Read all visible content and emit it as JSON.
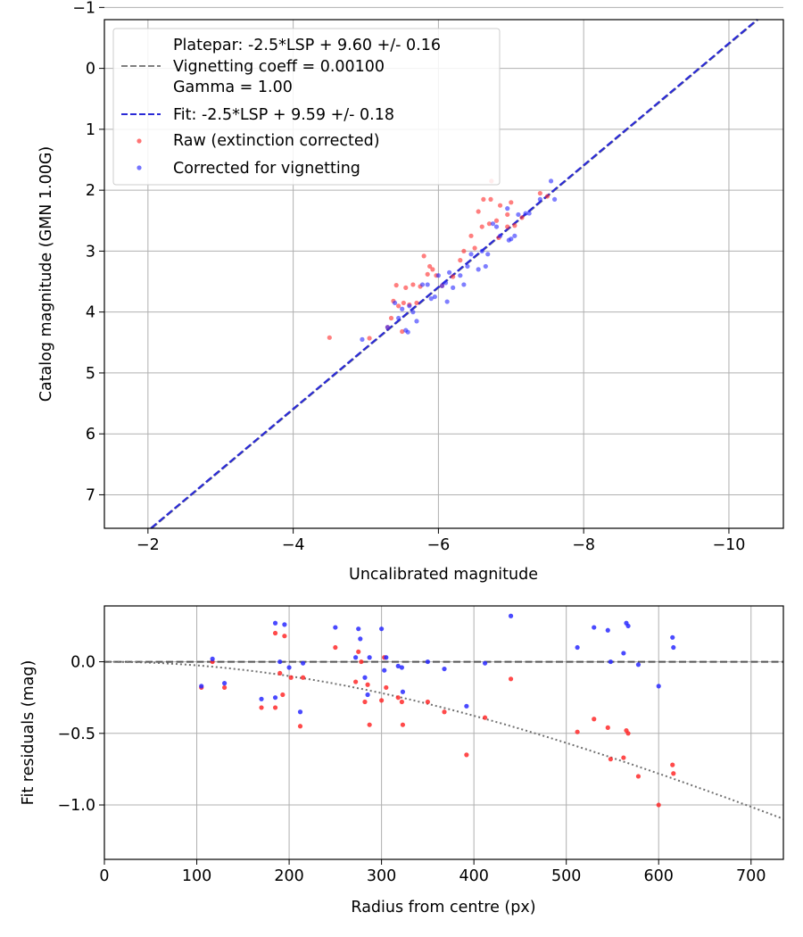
{
  "chart_data": [
    {
      "type": "scatter",
      "xlabel": "Uncalibrated magnitude",
      "ylabel": "Catalog magnitude (GMN 1.00G)",
      "xlim": [
        -1.4,
        -10.75
      ],
      "ylim": [
        7.55,
        -0.8
      ],
      "x_ticks": [
        -2,
        -4,
        -6,
        -8,
        -10
      ],
      "x_tick_labels": [
        "−2",
        "−4",
        "−6",
        "−8",
        "−10"
      ],
      "y_ticks": [
        -1,
        0,
        1,
        2,
        3,
        4,
        5,
        6,
        7
      ],
      "y_tick_labels": [
        "−1",
        "0",
        "1",
        "2",
        "3",
        "4",
        "5",
        "6",
        "7"
      ],
      "grid": true,
      "legend_position": "top-left",
      "legend": {
        "platepar_lines": [
          "Platepar: -2.5*LSP + 9.60 +/- 0.16",
          "Vignetting coeff = 0.00100",
          "Gamma = 1.00"
        ],
        "fit": "Fit: -2.5*LSP + 9.59 +/- 0.18",
        "raw": "Raw (extinction corrected)",
        "corrected": "Corrected for vignetting"
      },
      "lines": [
        {
          "name": "Platepar",
          "slope": 1.0,
          "intercept": 9.6,
          "color": "#808080",
          "style": "dashed"
        },
        {
          "name": "Fit",
          "slope": 1.0,
          "intercept": 9.59,
          "color": "#2a2ad6",
          "style": "dashed"
        }
      ],
      "series": [
        {
          "name": "Raw (extinction corrected)",
          "color": "#ff2a2a",
          "points": [
            [
              -4.5,
              4.42
            ],
            [
              -5.05,
              4.43
            ],
            [
              -5.3,
              4.25
            ],
            [
              -5.35,
              4.1
            ],
            [
              -5.38,
              3.82
            ],
            [
              -5.42,
              3.56
            ],
            [
              -5.45,
              3.9
            ],
            [
              -5.5,
              4.32
            ],
            [
              -5.52,
              3.85
            ],
            [
              -5.55,
              3.6
            ],
            [
              -5.6,
              3.88
            ],
            [
              -5.65,
              3.55
            ],
            [
              -5.7,
              3.85
            ],
            [
              -5.75,
              3.58
            ],
            [
              -5.8,
              3.08
            ],
            [
              -5.85,
              3.38
            ],
            [
              -5.88,
              3.25
            ],
            [
              -5.92,
              3.3
            ],
            [
              -5.97,
              3.4
            ],
            [
              -6.05,
              3.57
            ],
            [
              -6.2,
              3.42
            ],
            [
              -6.3,
              3.15
            ],
            [
              -6.35,
              3.0
            ],
            [
              -6.45,
              2.75
            ],
            [
              -6.5,
              2.95
            ],
            [
              -6.55,
              2.35
            ],
            [
              -6.6,
              2.6
            ],
            [
              -6.62,
              2.15
            ],
            [
              -6.7,
              2.55
            ],
            [
              -6.72,
              2.15
            ],
            [
              -6.73,
              1.85
            ],
            [
              -6.8,
              2.5
            ],
            [
              -6.83,
              2.78
            ],
            [
              -6.85,
              2.25
            ],
            [
              -6.95,
              2.4
            ],
            [
              -6.95,
              2.6
            ],
            [
              -7.0,
              2.2
            ],
            [
              -7.05,
              2.58
            ],
            [
              -7.15,
              2.45
            ],
            [
              -7.4,
              2.05
            ],
            [
              -7.5,
              2.1
            ]
          ]
        },
        {
          "name": "Corrected for vignetting",
          "color": "#2a2aff",
          "points": [
            [
              -4.95,
              4.45
            ],
            [
              -5.3,
              4.25
            ],
            [
              -5.4,
              3.85
            ],
            [
              -5.45,
              4.1
            ],
            [
              -5.5,
              3.95
            ],
            [
              -5.55,
              4.3
            ],
            [
              -5.58,
              4.33
            ],
            [
              -5.6,
              3.9
            ],
            [
              -5.65,
              4.0
            ],
            [
              -5.7,
              4.15
            ],
            [
              -5.78,
              3.55
            ],
            [
              -5.85,
              3.55
            ],
            [
              -5.9,
              3.78
            ],
            [
              -5.95,
              3.75
            ],
            [
              -6.0,
              3.4
            ],
            [
              -6.05,
              3.57
            ],
            [
              -6.1,
              3.52
            ],
            [
              -6.12,
              3.83
            ],
            [
              -6.15,
              3.35
            ],
            [
              -6.2,
              3.6
            ],
            [
              -6.3,
              3.4
            ],
            [
              -6.35,
              3.55
            ],
            [
              -6.4,
              3.25
            ],
            [
              -6.45,
              3.05
            ],
            [
              -6.55,
              3.3
            ],
            [
              -6.6,
              3.0
            ],
            [
              -6.65,
              3.25
            ],
            [
              -6.68,
              3.05
            ],
            [
              -6.75,
              2.55
            ],
            [
              -6.8,
              2.6
            ],
            [
              -6.85,
              2.75
            ],
            [
              -6.95,
              2.3
            ],
            [
              -6.97,
              2.82
            ],
            [
              -7.0,
              2.8
            ],
            [
              -7.05,
              2.75
            ],
            [
              -7.1,
              2.4
            ],
            [
              -7.2,
              2.38
            ],
            [
              -7.25,
              2.38
            ],
            [
              -7.4,
              2.15
            ],
            [
              -7.55,
              1.85
            ],
            [
              -7.6,
              2.15
            ]
          ]
        }
      ]
    },
    {
      "type": "scatter",
      "xlabel": "Radius from centre (px)",
      "ylabel": "Fit residuals (mag)",
      "xlim": [
        0,
        735
      ],
      "ylim": [
        -1.38,
        0.39
      ],
      "x_ticks": [
        0,
        100,
        200,
        300,
        400,
        500,
        600,
        700
      ],
      "x_tick_labels": [
        "0",
        "100",
        "200",
        "300",
        "400",
        "500",
        "600",
        "700"
      ],
      "y_ticks": [
        0.0,
        -0.5,
        -1.0
      ],
      "y_tick_labels": [
        "0.0",
        "−0.5",
        "−1.0"
      ],
      "grid": true,
      "lines": [
        {
          "name": "zero",
          "y": 0.0,
          "color": "#555555",
          "style": "dashed"
        },
        {
          "name": "Vignetting model",
          "color": "#707070",
          "style": "dotted"
        }
      ],
      "series": [
        {
          "name": "Raw (extinction corrected)",
          "color": "#ff2a2a",
          "points": [
            [
              105,
              -0.18
            ],
            [
              117,
              0.0
            ],
            [
              130,
              -0.18
            ],
            [
              170,
              -0.32
            ],
            [
              185,
              -0.32
            ],
            [
              185,
              0.2
            ],
            [
              190,
              -0.08
            ],
            [
              193,
              -0.23
            ],
            [
              195,
              0.18
            ],
            [
              202,
              -0.11
            ],
            [
              212,
              -0.45
            ],
            [
              215,
              -0.11
            ],
            [
              250,
              0.1
            ],
            [
              272,
              -0.14
            ],
            [
              275,
              0.07
            ],
            [
              278,
              -0.0
            ],
            [
              282,
              -0.28
            ],
            [
              285,
              -0.16
            ],
            [
              287,
              -0.44
            ],
            [
              300,
              -0.27
            ],
            [
              303,
              0.03
            ],
            [
              305,
              -0.18
            ],
            [
              318,
              -0.25
            ],
            [
              322,
              -0.28
            ],
            [
              323,
              -0.44
            ],
            [
              350,
              -0.28
            ],
            [
              368,
              -0.35
            ],
            [
              392,
              -0.65
            ],
            [
              412,
              -0.39
            ],
            [
              440,
              -0.12
            ],
            [
              512,
              -0.49
            ],
            [
              530,
              -0.4
            ],
            [
              545,
              -0.46
            ],
            [
              548,
              -0.68
            ],
            [
              562,
              -0.67
            ],
            [
              565,
              -0.48
            ],
            [
              567,
              -0.5
            ],
            [
              578,
              -0.8
            ],
            [
              600,
              -1.0
            ],
            [
              615,
              -0.72
            ],
            [
              616,
              -0.78
            ]
          ]
        },
        {
          "name": "Corrected for vignetting",
          "color": "#2a2aff",
          "points": [
            [
              105,
              -0.17
            ],
            [
              117,
              0.02
            ],
            [
              130,
              -0.15
            ],
            [
              170,
              -0.26
            ],
            [
              185,
              -0.25
            ],
            [
              185,
              0.27
            ],
            [
              190,
              0.0
            ],
            [
              195,
              0.26
            ],
            [
              200,
              -0.04
            ],
            [
              212,
              -0.35
            ],
            [
              215,
              -0.01
            ],
            [
              250,
              0.24
            ],
            [
              272,
              0.03
            ],
            [
              275,
              0.23
            ],
            [
              277,
              0.16
            ],
            [
              282,
              -0.11
            ],
            [
              285,
              -0.23
            ],
            [
              287,
              0.03
            ],
            [
              300,
              0.23
            ],
            [
              303,
              -0.06
            ],
            [
              305,
              0.03
            ],
            [
              318,
              -0.03
            ],
            [
              322,
              -0.04
            ],
            [
              323,
              -0.21
            ],
            [
              350,
              -0.0
            ],
            [
              368,
              -0.05
            ],
            [
              392,
              -0.31
            ],
            [
              412,
              -0.01
            ],
            [
              440,
              0.32
            ],
            [
              512,
              0.1
            ],
            [
              530,
              0.24
            ],
            [
              545,
              0.22
            ],
            [
              548,
              -0.0
            ],
            [
              562,
              0.06
            ],
            [
              565,
              0.27
            ],
            [
              567,
              0.25
            ],
            [
              578,
              -0.02
            ],
            [
              600,
              -0.17
            ],
            [
              615,
              0.17
            ],
            [
              616,
              0.1
            ]
          ]
        }
      ]
    }
  ]
}
